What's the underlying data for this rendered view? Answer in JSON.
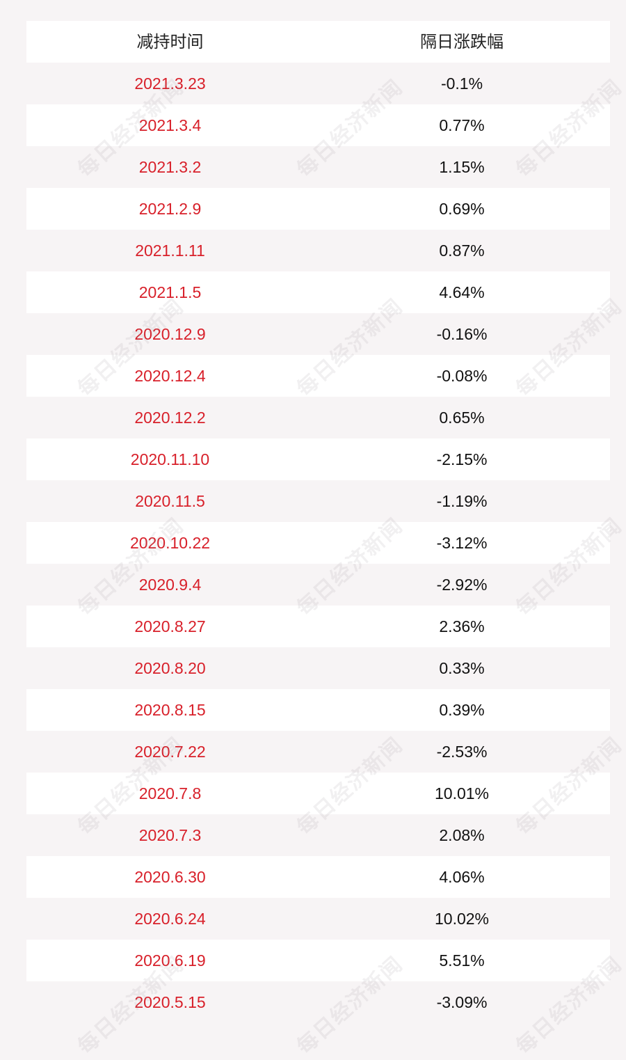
{
  "table": {
    "headers": [
      "减持时间",
      "隔日涨跌幅"
    ],
    "rows": [
      {
        "date": "2021.3.23",
        "change": "-0.1%"
      },
      {
        "date": "2021.3.4",
        "change": "0.77%"
      },
      {
        "date": "2021.3.2",
        "change": "1.15%"
      },
      {
        "date": "2021.2.9",
        "change": "0.69%"
      },
      {
        "date": "2021.1.11",
        "change": "0.87%"
      },
      {
        "date": "2021.1.5",
        "change": "4.64%"
      },
      {
        "date": "2020.12.9",
        "change": "-0.16%"
      },
      {
        "date": "2020.12.4",
        "change": "-0.08%"
      },
      {
        "date": "2020.12.2",
        "change": "0.65%"
      },
      {
        "date": "2020.11.10",
        "change": "-2.15%"
      },
      {
        "date": "2020.11.5",
        "change": "-1.19%"
      },
      {
        "date": "2020.10.22",
        "change": "-3.12%"
      },
      {
        "date": "2020.9.4",
        "change": "-2.92%"
      },
      {
        "date": "2020.8.27",
        "change": "2.36%"
      },
      {
        "date": "2020.8.20",
        "change": "0.33%"
      },
      {
        "date": "2020.8.15",
        "change": "0.39%"
      },
      {
        "date": "2020.7.22",
        "change": "-2.53%"
      },
      {
        "date": "2020.7.8",
        "change": "10.01%"
      },
      {
        "date": "2020.7.3",
        "change": "2.08%"
      },
      {
        "date": "2020.6.30",
        "change": "4.06%"
      },
      {
        "date": "2020.6.24",
        "change": "10.02%"
      },
      {
        "date": "2020.6.19",
        "change": "5.51%"
      },
      {
        "date": "2020.5.15",
        "change": "-3.09%"
      }
    ]
  },
  "watermark": {
    "text": "每日经济新闻",
    "color": "#968c91"
  },
  "colors": {
    "date_text": "#d8202a",
    "value_text": "#111111",
    "row_white": "#ffffff",
    "row_pink": "#f7f4f5"
  }
}
